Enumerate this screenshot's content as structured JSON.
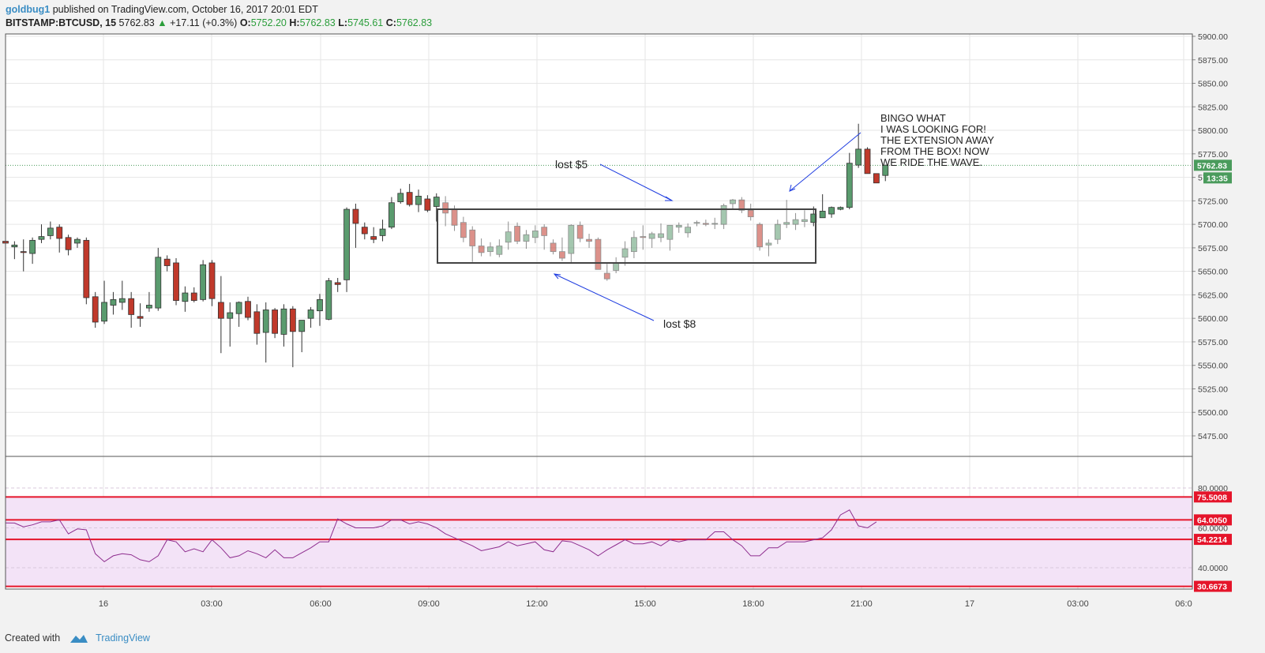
{
  "header": {
    "publisher": "goldbug1",
    "published_text": "published on TradingView.com, October 16, 2017 20:01 EDT",
    "symbol": "BITSTAMP:BTCUSD, 15",
    "last": "5762.83",
    "change": "+17.11 (+0.3%)",
    "o_label": "O:",
    "o_value": "5752.20",
    "h_label": "H:",
    "h_value": "5762.83",
    "l_label": "L:",
    "l_value": "5745.61",
    "c_label": "C:",
    "c_value": "5762.83"
  },
  "footer": {
    "created_with": "Created with",
    "brand": "TradingView"
  },
  "annotations": {
    "lost5": "lost $5",
    "lost8": "lost $8",
    "bingo": [
      "BINGO WHAT",
      "I WAS LOOKING FOR!",
      "THE EXTENSION AWAY",
      "FROM THE BOX! NOW",
      "WE RIDE THE WAVE."
    ]
  },
  "colors": {
    "up": "#5a9b6e",
    "down": "#c0392b",
    "box": "#444444",
    "rsi_line": "#8e2d8e",
    "rsi_fill": "#f3e3f7",
    "level_line": "#e5142a",
    "price_badge": "#4a9b5c"
  },
  "chart_data": [
    {
      "type": "candlestick",
      "symbol": "BITSTAMP:BTCUSD",
      "interval": "15",
      "price_axis": [
        "5900.00",
        "5875.00",
        "5850.00",
        "5825.00",
        "5800.00",
        "5775.00",
        "5750.00",
        "5725.00",
        "5700.00",
        "5675.00",
        "5650.00",
        "5625.00",
        "5600.00",
        "5575.00",
        "5550.00",
        "5525.00",
        "5500.00",
        "5475.00"
      ],
      "time_axis": [
        "16",
        "03:00",
        "06:00",
        "09:00",
        "12:00",
        "15:00",
        "18:00",
        "21:00",
        "17",
        "03:00",
        "06:0"
      ],
      "ylim": [
        5462,
        5903
      ],
      "last_price_label": "5762.83",
      "countdown_label": "13:35",
      "candles": [
        [
          5682,
          5685,
          5678,
          5680
        ],
        [
          5676,
          5682,
          5663,
          5678
        ],
        [
          5671,
          5684,
          5650,
          5670
        ],
        [
          5669,
          5686,
          5658,
          5683
        ],
        [
          5684,
          5700,
          5680,
          5687
        ],
        [
          5688,
          5703,
          5684,
          5696
        ],
        [
          5697,
          5700,
          5670,
          5685
        ],
        [
          5686,
          5689,
          5667,
          5673
        ],
        [
          5680,
          5686,
          5675,
          5684
        ],
        [
          5683,
          5686,
          5615,
          5622
        ],
        [
          5623,
          5628,
          5590,
          5596
        ],
        [
          5597,
          5640,
          5594,
          5617
        ],
        [
          5614,
          5628,
          5604,
          5620
        ],
        [
          5617,
          5640,
          5609,
          5621
        ],
        [
          5621,
          5628,
          5590,
          5604
        ],
        [
          5602,
          5616,
          5591,
          5600
        ],
        [
          5611,
          5628,
          5607,
          5614
        ],
        [
          5611,
          5675,
          5608,
          5665
        ],
        [
          5663,
          5667,
          5650,
          5656
        ],
        [
          5659,
          5664,
          5614,
          5619
        ],
        [
          5618,
          5634,
          5607,
          5627
        ],
        [
          5627,
          5633,
          5617,
          5619
        ],
        [
          5620,
          5662,
          5618,
          5657
        ],
        [
          5659,
          5662,
          5613,
          5621
        ],
        [
          5617,
          5645,
          5563,
          5600
        ],
        [
          5600,
          5617,
          5570,
          5606
        ],
        [
          5605,
          5618,
          5591,
          5617
        ],
        [
          5618,
          5623,
          5598,
          5601
        ],
        [
          5607,
          5615,
          5572,
          5584
        ],
        [
          5585,
          5617,
          5553,
          5609
        ],
        [
          5609,
          5611,
          5579,
          5584
        ],
        [
          5583,
          5615,
          5570,
          5610
        ],
        [
          5610,
          5613,
          5548,
          5586
        ],
        [
          5586,
          5598,
          5564,
          5598
        ],
        [
          5600,
          5612,
          5590,
          5609
        ],
        [
          5608,
          5626,
          5592,
          5620
        ],
        [
          5599,
          5643,
          5598,
          5640
        ],
        [
          5638,
          5643,
          5628,
          5636
        ],
        [
          5641,
          5718,
          5628,
          5716
        ],
        [
          5716,
          5722,
          5675,
          5701
        ],
        [
          5697,
          5702,
          5684,
          5690
        ],
        [
          5687,
          5697,
          5680,
          5684
        ],
        [
          5688,
          5705,
          5682,
          5695
        ],
        [
          5697,
          5729,
          5695,
          5723
        ],
        [
          5724,
          5738,
          5722,
          5733
        ],
        [
          5734,
          5743,
          5719,
          5721
        ],
        [
          5721,
          5737,
          5713,
          5730
        ],
        [
          5727,
          5731,
          5713,
          5715
        ],
        [
          5719,
          5733,
          5703,
          5729
        ],
        [
          5723,
          5730,
          5698,
          5712
        ],
        [
          5716,
          5720,
          5693,
          5699
        ],
        [
          5702,
          5708,
          5681,
          5686
        ],
        [
          5694,
          5698,
          5660,
          5677
        ],
        [
          5677,
          5685,
          5666,
          5670
        ],
        [
          5671,
          5681,
          5666,
          5676
        ],
        [
          5668,
          5684,
          5665,
          5677
        ],
        [
          5681,
          5703,
          5673,
          5692
        ],
        [
          5698,
          5702,
          5679,
          5682
        ],
        [
          5682,
          5694,
          5674,
          5689
        ],
        [
          5686,
          5699,
          5680,
          5693
        ],
        [
          5697,
          5700,
          5673,
          5688
        ],
        [
          5680,
          5684,
          5668,
          5671
        ],
        [
          5671,
          5686,
          5661,
          5664
        ],
        [
          5669,
          5700,
          5658,
          5699
        ],
        [
          5699,
          5703,
          5681,
          5685
        ],
        [
          5684,
          5690,
          5675,
          5682
        ],
        [
          5684,
          5686,
          5655,
          5652
        ],
        [
          5648,
          5658,
          5640,
          5642
        ],
        [
          5651,
          5665,
          5648,
          5659
        ],
        [
          5665,
          5682,
          5656,
          5674
        ],
        [
          5671,
          5693,
          5664,
          5686
        ],
        [
          5687,
          5699,
          5673,
          5686
        ],
        [
          5685,
          5692,
          5675,
          5690
        ],
        [
          5686,
          5701,
          5681,
          5690
        ],
        [
          5684,
          5696,
          5672,
          5699
        ],
        [
          5697,
          5702,
          5691,
          5699
        ],
        [
          5691,
          5701,
          5686,
          5697
        ],
        [
          5702,
          5704,
          5698,
          5702
        ],
        [
          5701,
          5705,
          5698,
          5700
        ],
        [
          5701,
          5707,
          5695,
          5701
        ],
        [
          5700,
          5722,
          5695,
          5720
        ],
        [
          5722,
          5727,
          5716,
          5726
        ],
        [
          5726,
          5729,
          5712,
          5715
        ],
        [
          5715,
          5722,
          5704,
          5708
        ],
        [
          5700,
          5702,
          5672,
          5676
        ],
        [
          5678,
          5684,
          5666,
          5680
        ],
        [
          5684,
          5705,
          5679,
          5700
        ],
        [
          5700,
          5726,
          5696,
          5702
        ],
        [
          5700,
          5712,
          5694,
          5705
        ],
        [
          5703,
          5715,
          5697,
          5705
        ],
        [
          5702,
          5719,
          5698,
          5711
        ],
        [
          5707,
          5732,
          5707,
          5714
        ],
        [
          5711,
          5719,
          5707,
          5718
        ],
        [
          5716,
          5719,
          5715,
          5718
        ],
        [
          5718,
          5776,
          5716,
          5765
        ],
        [
          5763,
          5807,
          5760,
          5780
        ],
        [
          5780,
          5782,
          5754,
          5754
        ],
        [
          5754,
          5753,
          5744,
          5744
        ],
        [
          5752,
          5763,
          5746,
          5763
        ]
      ]
    },
    {
      "type": "line",
      "name": "RSI",
      "ylim": [
        25,
        82
      ],
      "axis_labels": [
        "80.0000",
        "60.0000",
        "40.0000"
      ],
      "level_labels": [
        "75.5008",
        "64.0050",
        "54.2214",
        "30.6673"
      ],
      "levels": [
        75.5008,
        64.005,
        54.2214,
        30.6673
      ],
      "values": [
        62.5,
        62.4,
        60.5,
        61.5,
        63,
        63,
        64,
        57,
        59.5,
        59,
        47,
        43,
        46,
        47,
        46.5,
        44,
        43,
        46,
        54,
        53,
        48,
        49.5,
        48,
        54,
        50,
        45,
        46,
        48.5,
        47,
        45,
        49,
        45,
        45,
        47.5,
        50,
        53,
        53,
        64.5,
        62,
        60,
        60,
        60,
        61,
        64,
        64,
        62,
        63,
        62,
        60,
        57,
        55,
        53,
        51,
        48.5,
        49.5,
        50.5,
        53,
        51,
        52,
        53,
        49,
        48,
        53.5,
        53,
        51,
        49,
        46,
        49,
        51.5,
        54,
        52,
        52,
        53,
        51,
        54,
        53,
        54,
        54,
        54,
        58,
        58,
        54,
        51,
        46,
        46,
        50,
        50,
        53,
        53,
        53,
        54,
        55,
        59,
        66.5,
        69,
        61,
        60,
        63
      ]
    }
  ]
}
